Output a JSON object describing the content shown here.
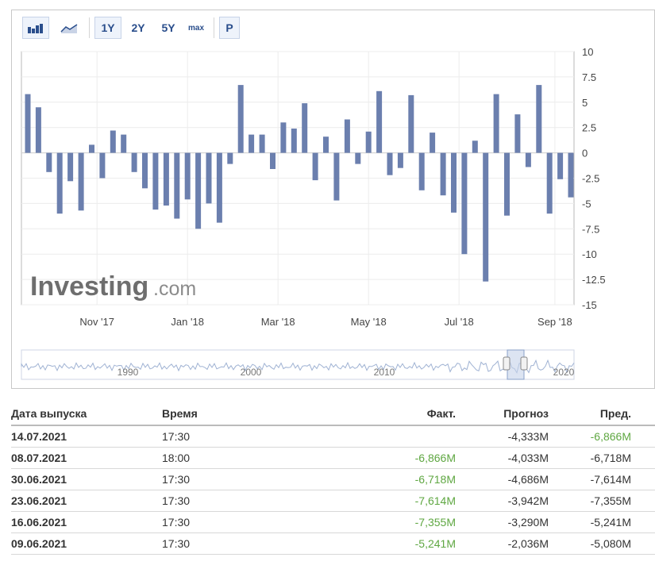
{
  "toolbar": {
    "chart_type_buttons": [
      "bar-chart-icon",
      "area-chart-icon"
    ],
    "range_buttons": [
      "1Y",
      "2Y",
      "5Y",
      "max"
    ],
    "active_range": "1Y",
    "p_button": "P"
  },
  "watermark": {
    "brand": "Investing",
    "suffix": ".com"
  },
  "chart_data": {
    "type": "bar",
    "color": "#6b7fae",
    "ylim": [
      -15,
      10
    ],
    "yticks": [
      10,
      7.5,
      5,
      2.5,
      0,
      -2.5,
      -5,
      -7.5,
      -10,
      -12.5,
      -15
    ],
    "ytick_labels": [
      "10",
      "7.5",
      "5",
      "2.5",
      "0",
      "-2.5",
      "-5",
      "-7.5",
      "-10",
      "-12.5",
      "-15"
    ],
    "xtick_labels": [
      "Nov '17",
      "Jan '18",
      "Mar '18",
      "May '18",
      "Jul '18",
      "Sep '18"
    ],
    "xtick_at_bar": [
      6.5,
      15,
      23.5,
      32,
      40.5,
      49.5
    ],
    "values": [
      5.8,
      4.5,
      -1.9,
      -6.0,
      -2.8,
      -5.7,
      0.8,
      -2.5,
      2.2,
      1.8,
      -1.9,
      -3.5,
      -5.6,
      -5.2,
      -6.5,
      -4.6,
      -7.5,
      -5.0,
      -6.9,
      -1.1,
      6.7,
      1.8,
      1.8,
      -1.6,
      3.0,
      2.4,
      4.9,
      -2.7,
      1.6,
      -4.7,
      3.3,
      -1.1,
      2.1,
      6.1,
      -2.2,
      -1.5,
      5.7,
      -3.7,
      2.0,
      -4.2,
      -5.9,
      -10.0,
      1.2,
      -12.7,
      5.8,
      -6.2,
      3.8,
      -1.4,
      6.7,
      -6.0,
      -2.6,
      -4.4
    ],
    "navigator": {
      "labels": [
        "1990",
        "2000",
        "2010",
        "2020"
      ]
    }
  },
  "table": {
    "headers": {
      "date": "Дата выпуска",
      "time": "Время",
      "actual": "Факт.",
      "forecast": "Прогноз",
      "previous": "Пред."
    },
    "rows": [
      {
        "date": "14.07.2021",
        "time": "17:30",
        "actual": "",
        "forecast": "-4,333M",
        "previous": "-6,866M",
        "previous_green": true
      },
      {
        "date": "08.07.2021",
        "time": "18:00",
        "actual": "-6,866M",
        "forecast": "-4,033M",
        "previous": "-6,718M",
        "previous_green": false
      },
      {
        "date": "30.06.2021",
        "time": "17:30",
        "actual": "-6,718M",
        "forecast": "-4,686M",
        "previous": "-7,614M",
        "previous_green": false
      },
      {
        "date": "23.06.2021",
        "time": "17:30",
        "actual": "-7,614M",
        "forecast": "-3,942M",
        "previous": "-7,355M",
        "previous_green": false
      },
      {
        "date": "16.06.2021",
        "time": "17:30",
        "actual": "-7,355M",
        "forecast": "-3,290M",
        "previous": "-5,241M",
        "previous_green": false
      },
      {
        "date": "09.06.2021",
        "time": "17:30",
        "actual": "-5,241M",
        "forecast": "-2,036M",
        "previous": "-5,080M",
        "previous_green": false
      }
    ]
  }
}
